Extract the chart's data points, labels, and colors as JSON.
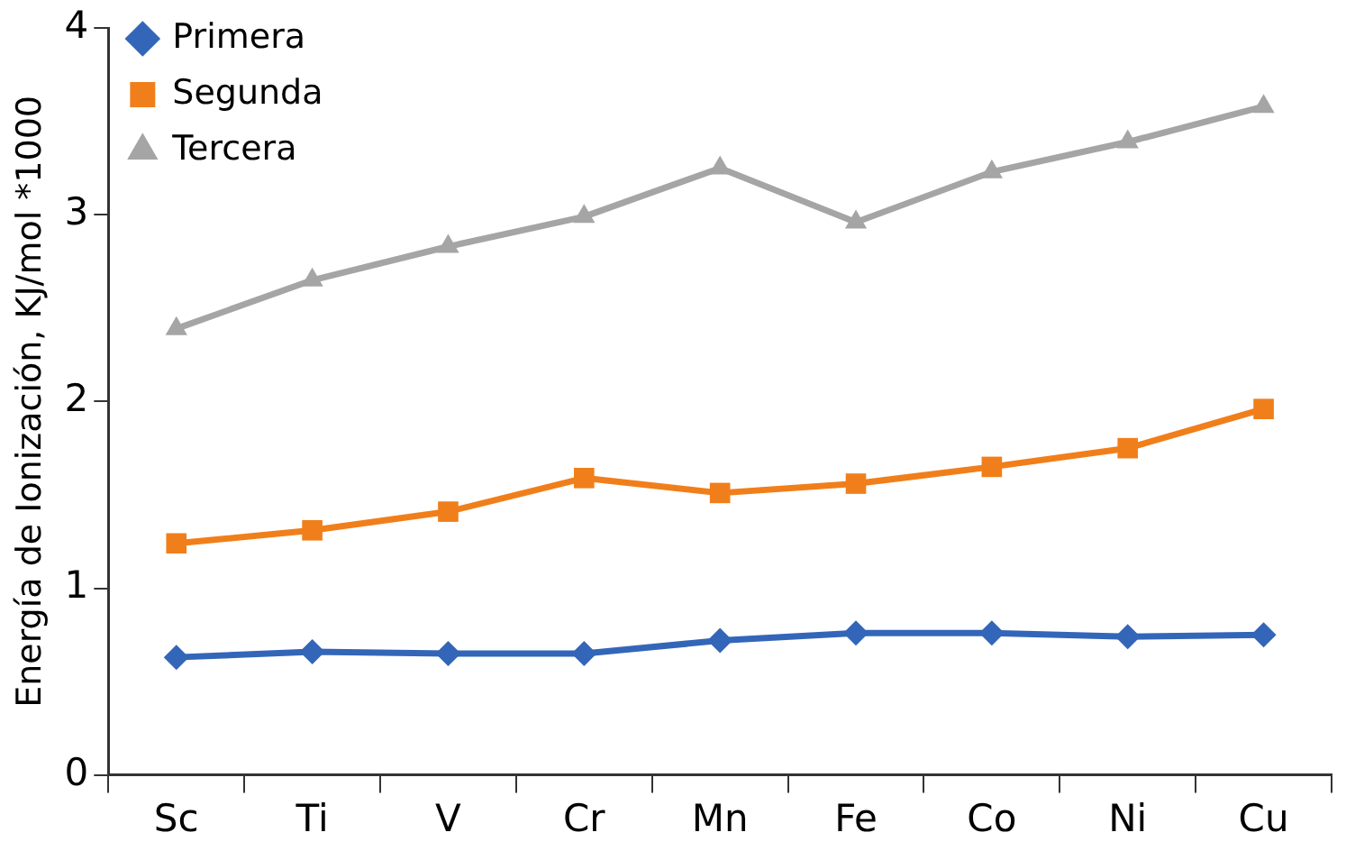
{
  "chart_data": {
    "type": "line",
    "ylabel": "Energía de Ionización, KJ/mol *1000",
    "categories": [
      "Sc",
      "Ti",
      "V",
      "Cr",
      "Mn",
      "Fe",
      "Co",
      "Ni",
      "Cu"
    ],
    "series": [
      {
        "name": "Primera",
        "color": "#3366b8",
        "marker": "diamond",
        "values": [
          0.63,
          0.66,
          0.65,
          0.65,
          0.72,
          0.76,
          0.76,
          0.74,
          0.75
        ]
      },
      {
        "name": "Segunda",
        "color": "#f07f1b",
        "marker": "square",
        "values": [
          1.24,
          1.31,
          1.41,
          1.59,
          1.51,
          1.56,
          1.65,
          1.75,
          1.96
        ]
      },
      {
        "name": "Tercera",
        "color": "#a5a5a5",
        "marker": "triangle",
        "values": [
          2.39,
          2.65,
          2.83,
          2.99,
          3.25,
          2.96,
          3.23,
          3.39,
          3.58
        ]
      }
    ],
    "ylim": [
      0,
      4
    ],
    "yticks": [
      0,
      1,
      2,
      3,
      4
    ],
    "grid": false,
    "legend": "top left",
    "line_style": "solid"
  }
}
